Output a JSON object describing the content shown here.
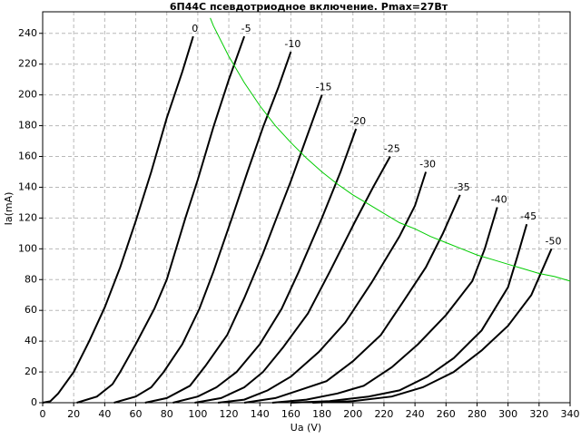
{
  "chart_data": {
    "type": "line",
    "title": "6П44С псевдотриодное включение. Pmax=27Вт",
    "xlabel": "Ua (V)",
    "ylabel": "Ia(mA)",
    "xlim": [
      0,
      340
    ],
    "ylim": [
      0,
      254
    ],
    "xticks": [
      0,
      20,
      40,
      60,
      80,
      100,
      120,
      140,
      160,
      180,
      200,
      220,
      240,
      260,
      280,
      300,
      320,
      340
    ],
    "yticks": [
      0,
      20,
      40,
      60,
      80,
      100,
      120,
      140,
      160,
      180,
      200,
      220,
      240
    ],
    "grid": true,
    "series": [
      {
        "name": "0",
        "color": "#000000",
        "x": [
          0,
          5,
          10,
          20,
          30,
          40,
          50,
          60,
          70,
          80,
          90,
          97
        ],
        "values": [
          0,
          1,
          6,
          20,
          40,
          62,
          88,
          118,
          150,
          185,
          215,
          238
        ]
      },
      {
        "name": "-5",
        "color": "#000000",
        "x": [
          22,
          35,
          45,
          50,
          60,
          72,
          80,
          92,
          100,
          110,
          120,
          130
        ],
        "values": [
          0,
          4,
          12,
          20,
          38,
          61,
          80,
          120,
          145,
          179,
          210,
          238
        ]
      },
      {
        "name": "-10",
        "color": "#000000",
        "x": [
          46,
          60,
          70,
          78,
          90,
          101,
          110,
          122,
          132,
          142,
          152,
          160
        ],
        "values": [
          0,
          4,
          10,
          20,
          38,
          61,
          85,
          120,
          150,
          179,
          205,
          228
        ]
      },
      {
        "name": "-15",
        "color": "#000000",
        "x": [
          66,
          80,
          95,
          105,
          119,
          130,
          142,
          150,
          160,
          170,
          180
        ],
        "values": [
          0,
          3,
          11,
          24,
          44,
          68,
          97,
          118,
          144,
          172,
          200
        ]
      },
      {
        "name": "-20",
        "color": "#000000",
        "x": [
          84,
          100,
          112,
          125,
          140,
          154,
          165,
          180,
          192,
          202
        ],
        "values": [
          0,
          4,
          10,
          20,
          38,
          61,
          85,
          120,
          150,
          178
        ]
      },
      {
        "name": "-25",
        "color": "#000000",
        "x": [
          98,
          115,
          130,
          142,
          155,
          171,
          185,
          201,
          213,
          224
        ],
        "values": [
          0,
          3,
          10,
          20,
          36,
          58,
          85,
          117,
          140,
          160
        ]
      },
      {
        "name": "-30",
        "color": "#000000",
        "x": [
          113,
          130,
          145,
          160,
          178,
          195,
          212,
          230,
          240,
          247
        ],
        "values": [
          0,
          2,
          8,
          17,
          33,
          52,
          78,
          108,
          128,
          150
        ]
      },
      {
        "name": "-35",
        "color": "#000000",
        "x": [
          130,
          150,
          165,
          183,
          200,
          218,
          232,
          247,
          258,
          269
        ],
        "values": [
          0,
          3,
          8,
          14,
          27,
          44,
          65,
          88,
          110,
          135
        ]
      },
      {
        "name": "-40",
        "color": "#000000",
        "x": [
          148,
          170,
          190,
          207,
          225,
          242,
          260,
          277,
          285,
          293
        ],
        "values": [
          0,
          2,
          6,
          11,
          23,
          38,
          57,
          79,
          100,
          127
        ]
      },
      {
        "name": "-45",
        "color": "#000000",
        "x": [
          160,
          185,
          210,
          230,
          248,
          265,
          283,
          300,
          306,
          312
        ],
        "values": [
          0,
          1,
          4,
          8,
          17,
          29,
          47,
          75,
          95,
          116
        ]
      },
      {
        "name": "-50",
        "color": "#000000",
        "x": [
          174,
          200,
          225,
          245,
          265,
          283,
          300,
          315,
          328
        ],
        "values": [
          0,
          1,
          4,
          10,
          20,
          34,
          50,
          70,
          100
        ]
      },
      {
        "color": "#00cc00",
        "x": [
          108,
          110,
          120,
          130,
          140,
          150,
          160,
          170,
          180,
          190,
          200,
          210,
          220,
          230,
          240,
          250,
          260,
          270,
          280,
          290,
          300,
          310,
          320,
          330,
          340
        ],
        "values": [
          250,
          245,
          225,
          208,
          193,
          180,
          169,
          159,
          150,
          142,
          135,
          129,
          123,
          117,
          113,
          108,
          104,
          100,
          96,
          93,
          90,
          87,
          84,
          82,
          79
        ]
      }
    ]
  }
}
